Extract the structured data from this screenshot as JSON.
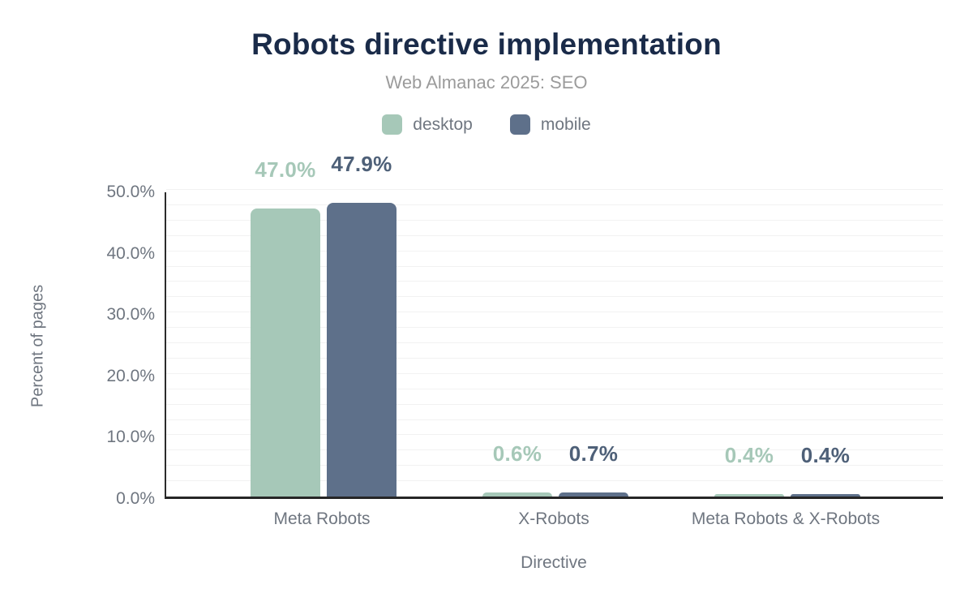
{
  "chart_data": {
    "type": "bar",
    "title": "Robots directive implementation",
    "subtitle": "Web Almanac 2025: SEO",
    "xlabel": "Directive",
    "ylabel": "Percent of pages",
    "categories": [
      "Meta Robots",
      "X-Robots",
      "Meta Robots & X-Robots"
    ],
    "series": [
      {
        "name": "desktop",
        "color": "#a6c8b8",
        "label_color": "#a6c8b8",
        "values": [
          47.0,
          0.6,
          0.4
        ],
        "value_labels": [
          "47.0%",
          "0.6%",
          "0.4%"
        ]
      },
      {
        "name": "mobile",
        "color": "#5e708a",
        "label_color": "#4e6078",
        "values": [
          47.9,
          0.7,
          0.4
        ],
        "value_labels": [
          "47.9%",
          "0.7%",
          "0.4%"
        ]
      }
    ],
    "ylim": [
      0,
      50
    ],
    "yticks": [
      0,
      10,
      20,
      30,
      40,
      50
    ],
    "ytick_labels": [
      "0.0%",
      "10.0%",
      "20.0%",
      "30.0%",
      "40.0%",
      "50.0%"
    ],
    "grid": "horizontal minor lines every 2.5, on",
    "legend_position": "top"
  },
  "palette": {
    "title_color": "#1a2b49",
    "subtitle_color": "#9b9b9b",
    "axis_text_color": "#6f7680",
    "axis_line_color": "#2b2b2b",
    "gridline_color": "#f2f2f2",
    "background": "#ffffff"
  }
}
